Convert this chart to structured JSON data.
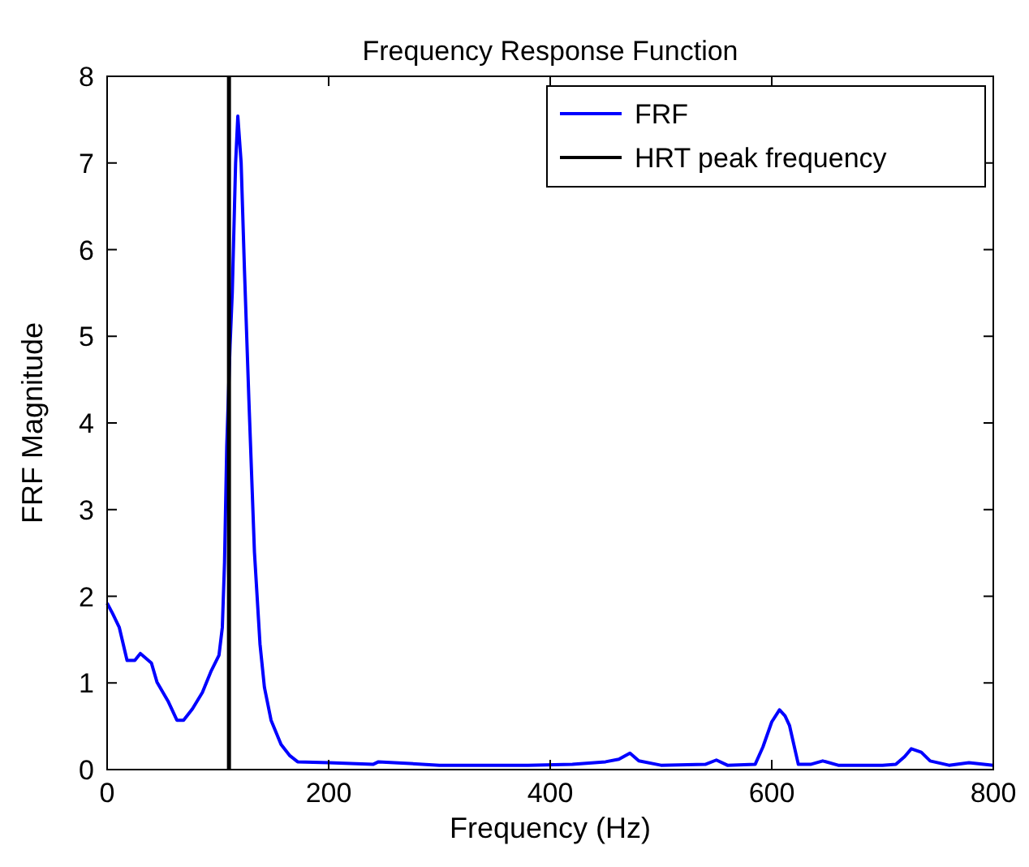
{
  "chart_data": {
    "type": "line",
    "title": "Frequency Response Function",
    "xlabel": "Frequency (Hz)",
    "ylabel": "FRF Magnitude",
    "xlim": [
      0,
      800
    ],
    "ylim": [
      0,
      8
    ],
    "xticks": [
      0,
      200,
      400,
      600,
      800
    ],
    "yticks": [
      0,
      1,
      2,
      3,
      4,
      5,
      6,
      7,
      8
    ],
    "legend": "top right",
    "grid": false,
    "series": [
      {
        "name": "FRF",
        "color": "#0000ff",
        "x": [
          0,
          5,
          11,
          18,
          25,
          30,
          40,
          45,
          55,
          63,
          69,
          77,
          86,
          94,
          101,
          104,
          106,
          108,
          111,
          113,
          116,
          118,
          121,
          124,
          128,
          133,
          138,
          142,
          148,
          157,
          165,
          172,
          200,
          240,
          245,
          300,
          350,
          380,
          420,
          450,
          462,
          472,
          480,
          500,
          540,
          550,
          560,
          585,
          592,
          600,
          607,
          612,
          616,
          624,
          635,
          646,
          660,
          700,
          712,
          720,
          726,
          735,
          743,
          760,
          778,
          800
        ],
        "values": [
          1.92,
          1.8,
          1.64,
          1.26,
          1.26,
          1.34,
          1.23,
          1.01,
          0.79,
          0.57,
          0.57,
          0.7,
          0.89,
          1.14,
          1.32,
          1.64,
          2.39,
          3.73,
          4.9,
          5.51,
          7.0,
          7.54,
          7.0,
          5.76,
          4.26,
          2.51,
          1.45,
          0.95,
          0.57,
          0.29,
          0.16,
          0.09,
          0.08,
          0.06,
          0.09,
          0.05,
          0.05,
          0.05,
          0.06,
          0.09,
          0.12,
          0.19,
          0.1,
          0.05,
          0.06,
          0.11,
          0.05,
          0.06,
          0.26,
          0.55,
          0.69,
          0.62,
          0.51,
          0.06,
          0.06,
          0.1,
          0.05,
          0.05,
          0.06,
          0.15,
          0.24,
          0.2,
          0.1,
          0.05,
          0.08,
          0.05
        ]
      },
      {
        "name": "HRT peak frequency",
        "color": "#000000",
        "x": [
          110,
          110
        ],
        "values": [
          0,
          8
        ]
      }
    ]
  }
}
